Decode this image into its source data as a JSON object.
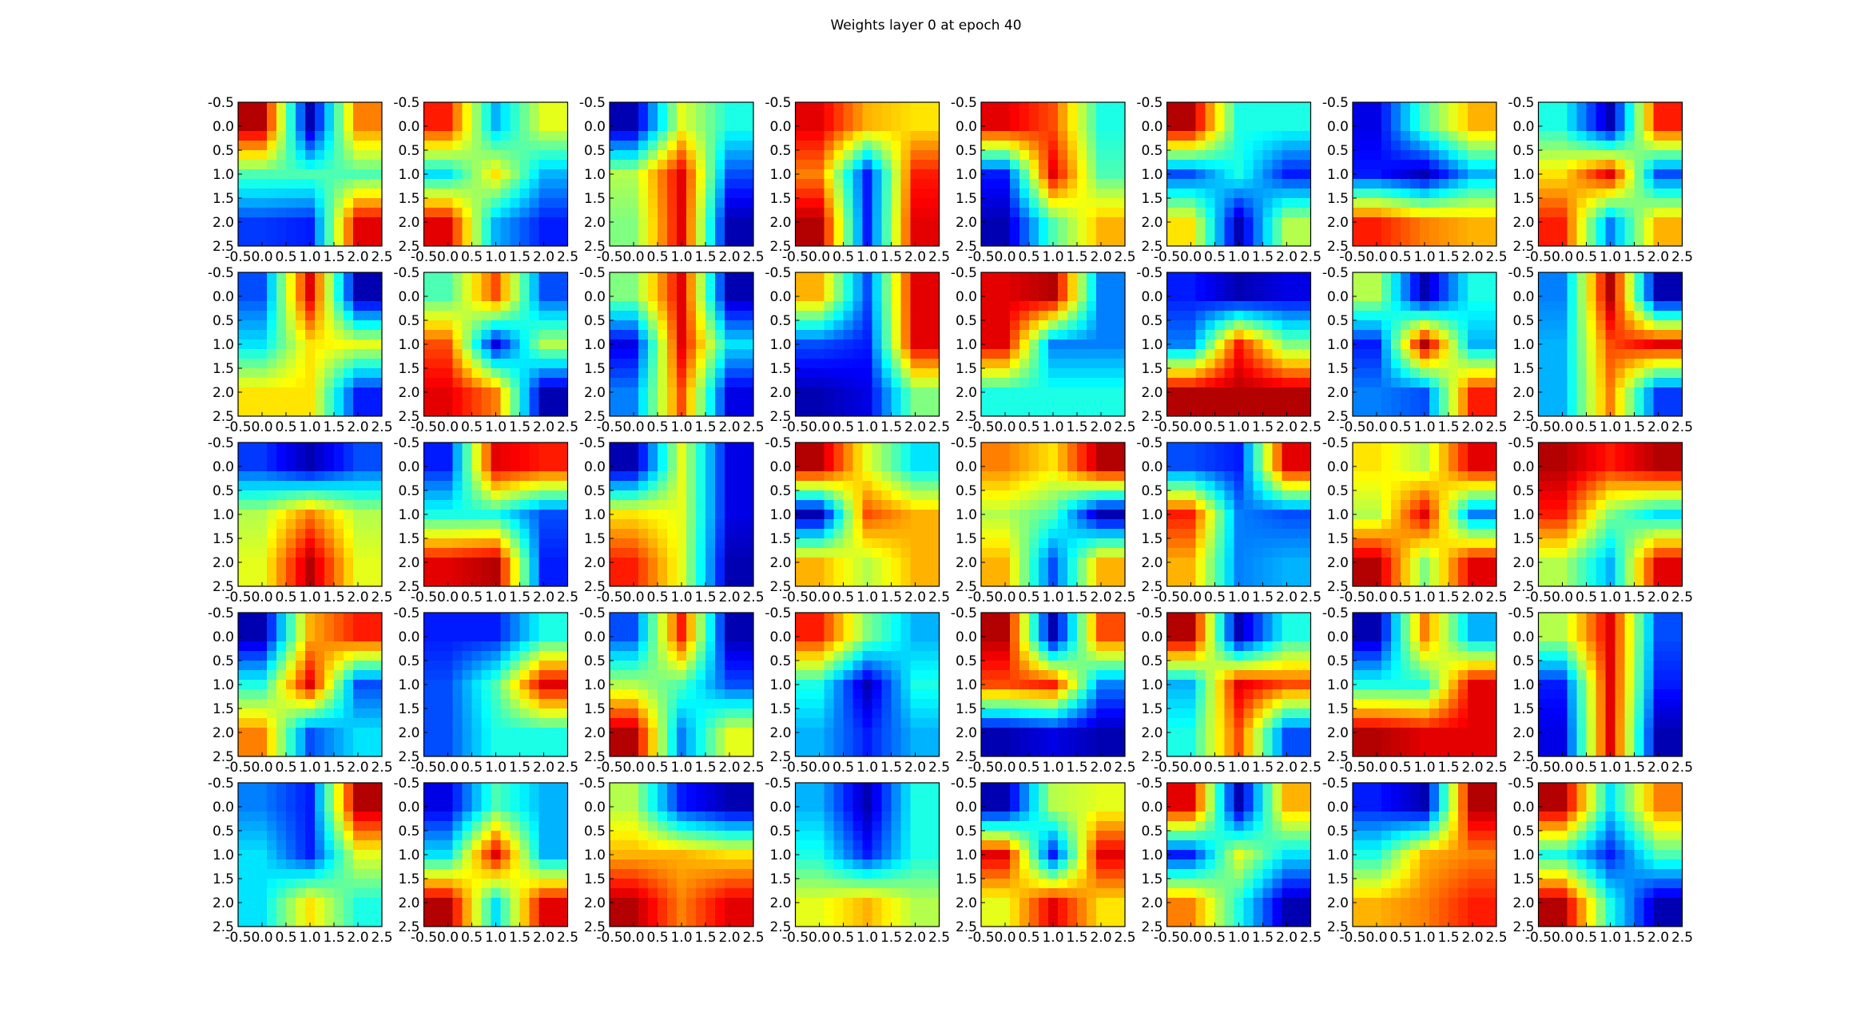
{
  "chart_data": {
    "type": "heatmap",
    "title": "Weights layer 0 at epoch 40",
    "grid_rows": 5,
    "grid_cols": 8,
    "colormap": "jet",
    "interpolation": "bilinear",
    "grid": false,
    "xlim": [
      -0.5,
      2.5
    ],
    "ylim": [
      2.5,
      -0.5
    ],
    "xticks": [
      "-0.5",
      "0.0",
      "0.5",
      "1.0",
      "1.5",
      "2.0",
      "2.5"
    ],
    "yticks": [
      "-0.5",
      "0.0",
      "0.5",
      "1.0",
      "1.5",
      "2.0",
      "2.5"
    ],
    "weights": [
      [
        [
          0.95,
          0.05,
          0.75
        ],
        [
          0.45,
          0.45,
          0.45
        ],
        [
          0.18,
          0.15,
          0.9
        ]
      ],
      [
        [
          0.85,
          0.3,
          0.6
        ],
        [
          0.35,
          0.65,
          0.3
        ],
        [
          0.9,
          0.3,
          0.15
        ]
      ],
      [
        [
          0.05,
          0.6,
          0.4
        ],
        [
          0.55,
          0.9,
          0.2
        ],
        [
          0.5,
          0.9,
          0.05
        ]
      ],
      [
        [
          0.9,
          0.7,
          0.65
        ],
        [
          0.75,
          0.15,
          0.85
        ],
        [
          0.95,
          0.15,
          0.9
        ]
      ],
      [
        [
          0.9,
          0.8,
          0.4
        ],
        [
          0.15,
          0.9,
          0.45
        ],
        [
          0.05,
          0.45,
          0.7
        ]
      ],
      [
        [
          0.95,
          0.4,
          0.4
        ],
        [
          0.2,
          0.4,
          0.15
        ],
        [
          0.65,
          0.05,
          0.55
        ]
      ],
      [
        [
          0.1,
          0.45,
          0.7
        ],
        [
          0.15,
          0.05,
          0.3
        ],
        [
          0.85,
          0.75,
          0.7
        ]
      ],
      [
        [
          0.4,
          0.05,
          0.85
        ],
        [
          0.65,
          0.9,
          0.2
        ],
        [
          0.85,
          0.25,
          0.7
        ]
      ],
      [
        [
          0.2,
          0.9,
          0.05
        ],
        [
          0.35,
          0.65,
          0.6
        ],
        [
          0.65,
          0.65,
          0.15
        ]
      ],
      [
        [
          0.45,
          0.8,
          0.2
        ],
        [
          0.8,
          0.1,
          0.55
        ],
        [
          0.9,
          0.75,
          0.05
        ]
      ],
      [
        [
          0.5,
          0.9,
          0.05
        ],
        [
          0.1,
          0.9,
          0.35
        ],
        [
          0.25,
          0.8,
          0.1
        ]
      ],
      [
        [
          0.7,
          0.2,
          0.9
        ],
        [
          0.2,
          0.15,
          0.9
        ],
        [
          0.05,
          0.1,
          0.5
        ]
      ],
      [
        [
          0.9,
          0.95,
          0.25
        ],
        [
          0.9,
          0.25,
          0.25
        ],
        [
          0.4,
          0.4,
          0.4
        ]
      ],
      [
        [
          0.15,
          0.05,
          0.1
        ],
        [
          0.25,
          0.85,
          0.5
        ],
        [
          0.95,
          0.95,
          0.95
        ]
      ],
      [
        [
          0.55,
          0.05,
          0.4
        ],
        [
          0.15,
          0.95,
          0.3
        ],
        [
          0.25,
          0.2,
          0.85
        ]
      ],
      [
        [
          0.25,
          0.95,
          0.05
        ],
        [
          0.3,
          0.8,
          0.9
        ],
        [
          0.3,
          0.75,
          0.18
        ]
      ],
      [
        [
          0.18,
          0.05,
          0.2
        ],
        [
          0.55,
          0.75,
          0.55
        ],
        [
          0.6,
          0.95,
          0.6
        ]
      ],
      [
        [
          0.15,
          0.9,
          0.85
        ],
        [
          0.4,
          0.4,
          0.2
        ],
        [
          0.9,
          0.95,
          0.15
        ]
      ],
      [
        [
          0.05,
          0.6,
          0.1
        ],
        [
          0.65,
          0.6,
          0.1
        ],
        [
          0.85,
          0.6,
          0.05
        ]
      ],
      [
        [
          0.95,
          0.6,
          0.35
        ],
        [
          0.05,
          0.8,
          0.7
        ],
        [
          0.7,
          0.55,
          0.7
        ]
      ],
      [
        [
          0.75,
          0.65,
          0.95
        ],
        [
          0.55,
          0.45,
          0.05
        ],
        [
          0.7,
          0.2,
          0.7
        ]
      ],
      [
        [
          0.2,
          0.15,
          0.9
        ],
        [
          0.85,
          0.25,
          0.2
        ],
        [
          0.7,
          0.25,
          0.3
        ]
      ],
      [
        [
          0.65,
          0.55,
          0.9
        ],
        [
          0.55,
          0.9,
          0.25
        ],
        [
          0.95,
          0.5,
          0.9
        ]
      ],
      [
        [
          0.95,
          0.85,
          0.95
        ],
        [
          0.85,
          0.5,
          0.35
        ],
        [
          0.55,
          0.3,
          0.9
        ]
      ],
      [
        [
          0.05,
          0.7,
          0.85
        ],
        [
          0.4,
          0.9,
          0.2
        ],
        [
          0.75,
          0.2,
          0.35
        ]
      ],
      [
        [
          0.15,
          0.15,
          0.4
        ],
        [
          0.2,
          0.45,
          0.9
        ],
        [
          0.2,
          0.4,
          0.4
        ]
      ],
      [
        [
          0.2,
          0.85,
          0.05
        ],
        [
          0.55,
          0.45,
          0.2
        ],
        [
          0.95,
          0.25,
          0.6
        ]
      ],
      [
        [
          0.85,
          0.5,
          0.3
        ],
        [
          0.4,
          0.05,
          0.4
        ],
        [
          0.3,
          0.15,
          0.3
        ]
      ],
      [
        [
          0.95,
          0.05,
          0.8
        ],
        [
          0.8,
          0.85,
          0.25
        ],
        [
          0.05,
          0.1,
          0.05
        ]
      ],
      [
        [
          0.95,
          0.05,
          0.4
        ],
        [
          0.3,
          0.9,
          0.8
        ],
        [
          0.4,
          0.8,
          0.2
        ]
      ],
      [
        [
          0.05,
          0.75,
          0.3
        ],
        [
          0.4,
          0.4,
          0.9
        ],
        [
          0.95,
          0.9,
          0.9
        ]
      ],
      [
        [
          0.55,
          0.9,
          0.2
        ],
        [
          0.15,
          0.9,
          0.15
        ],
        [
          0.1,
          0.9,
          0.05
        ]
      ],
      [
        [
          0.25,
          0.15,
          0.95
        ],
        [
          0.35,
          0.15,
          0.6
        ],
        [
          0.35,
          0.65,
          0.4
        ]
      ],
      [
        [
          0.1,
          0.45,
          0.3
        ],
        [
          0.35,
          0.9,
          0.3
        ],
        [
          0.95,
          0.35,
          0.9
        ]
      ],
      [
        [
          0.55,
          0.15,
          0.05
        ],
        [
          0.7,
          0.7,
          0.65
        ],
        [
          0.95,
          0.75,
          0.9
        ]
      ],
      [
        [
          0.3,
          0.05,
          0.4
        ],
        [
          0.4,
          0.15,
          0.4
        ],
        [
          0.6,
          0.7,
          0.55
        ]
      ],
      [
        [
          0.05,
          0.55,
          0.6
        ],
        [
          0.9,
          0.15,
          0.9
        ],
        [
          0.6,
          0.9,
          0.65
        ]
      ],
      [
        [
          0.9,
          0.05,
          0.7
        ],
        [
          0.15,
          0.6,
          0.35
        ],
        [
          0.75,
          0.4,
          0.05
        ]
      ],
      [
        [
          0.15,
          0.05,
          0.95
        ],
        [
          0.4,
          0.7,
          0.75
        ],
        [
          0.7,
          0.75,
          0.85
        ]
      ],
      [
        [
          0.95,
          0.35,
          0.75
        ],
        [
          0.4,
          0.15,
          0.45
        ],
        [
          0.95,
          0.4,
          0.05
        ]
      ]
    ]
  }
}
